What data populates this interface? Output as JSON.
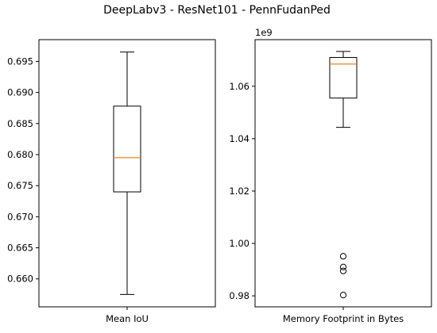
{
  "figure_title": "DeepLabv3 - ResNet101 - PennFudanPed",
  "colors": {
    "box": "#000000",
    "median": "#ff7f0e",
    "background": "#ffffff"
  },
  "chart_data": [
    {
      "type": "box",
      "xlabel": "Mean IoU",
      "ylabel": "",
      "ylim": [
        0.6555,
        0.6985
      ],
      "yticks": [
        0.66,
        0.665,
        0.67,
        0.675,
        0.68,
        0.685,
        0.69,
        0.695
      ],
      "ytick_labels": [
        "0.660",
        "0.665",
        "0.670",
        "0.675",
        "0.680",
        "0.685",
        "0.690",
        "0.695"
      ],
      "offset_label": "",
      "box": {
        "whisker_low": 0.6575,
        "q1": 0.674,
        "median": 0.6795,
        "q3": 0.6878,
        "whisker_high": 0.6965,
        "outliers": []
      }
    },
    {
      "type": "box",
      "xlabel": "Memory Footprint in Bytes",
      "ylabel": "",
      "ylim": [
        0.9758,
        1.0778
      ],
      "yticks": [
        0.98,
        1.0,
        1.02,
        1.04,
        1.06
      ],
      "ytick_labels": [
        "0.98",
        "1.00",
        "1.02",
        "1.04",
        "1.06"
      ],
      "offset_label": "1e9",
      "box": {
        "whisker_low": 1.0443,
        "q1": 1.0555,
        "median": 1.0685,
        "q3": 1.071,
        "whisker_high": 1.0733,
        "outliers": [
          0.9951,
          0.991,
          0.9895,
          0.9803
        ]
      }
    }
  ]
}
